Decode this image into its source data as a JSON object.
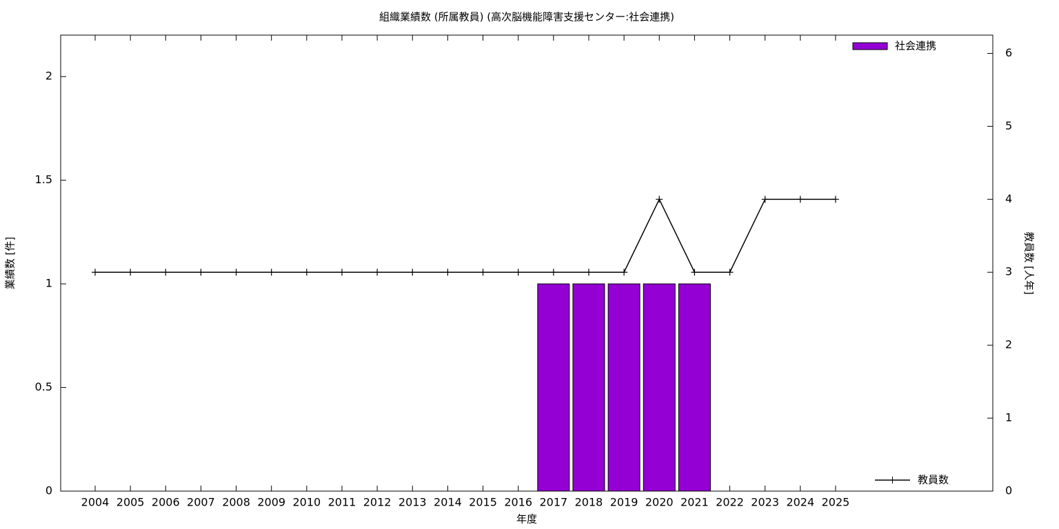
{
  "chart_data": {
    "type": "bar",
    "title": "組織業績数 (所属教員) (高次脳機能障害支援センター:社会連携)",
    "x_label": "年度",
    "y_label": "業績数 [件]",
    "y2_label": "教員数 [人年]",
    "categories": [
      "2004",
      "2005",
      "2006",
      "2007",
      "2008",
      "2009",
      "2010",
      "2011",
      "2012",
      "2013",
      "2014",
      "2015",
      "2016",
      "2017",
      "2018",
      "2019",
      "2020",
      "2021",
      "2022",
      "2023",
      "2024",
      "2025"
    ],
    "series": [
      {
        "name": "社会連携",
        "type": "bar",
        "color": "#9400d3",
        "values": [
          0,
          0,
          0,
          0,
          0,
          0,
          0,
          0,
          0,
          0,
          0,
          0,
          0,
          1,
          1,
          1,
          1,
          1,
          0,
          0,
          0,
          0
        ]
      },
      {
        "name": "教員数",
        "type": "line",
        "axis": "y2",
        "color": "#000000",
        "values": [
          3,
          3,
          3,
          3,
          3,
          3,
          3,
          3,
          3,
          3,
          3,
          3,
          3,
          3,
          3,
          3,
          4,
          3,
          3,
          4,
          4,
          4
        ]
      }
    ],
    "ylim": [
      0,
      2.2
    ],
    "yticks": [
      0,
      0.5,
      1,
      1.5,
      2
    ],
    "y2lim": [
      0,
      6.25
    ],
    "y2ticks": [
      0,
      1,
      2,
      3,
      4,
      5,
      6
    ],
    "legend": "right"
  }
}
